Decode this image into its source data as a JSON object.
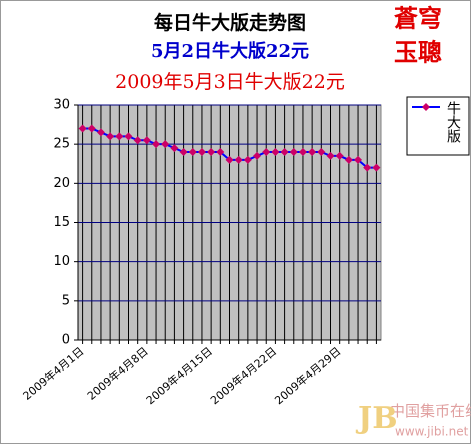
{
  "chart_data": {
    "type": "line",
    "title": "每日牛大版走势图",
    "subtitle": "5月2日牛大版22元",
    "annotation": "2009年5月3日牛大版22元",
    "logo": [
      "蒼穹",
      "玉聰"
    ],
    "watermark": [
      "中国集币在线",
      "www.jibi.net"
    ],
    "categories": [
      "2009年4月1日",
      null,
      null,
      null,
      null,
      null,
      null,
      "2009年4月8日",
      null,
      null,
      null,
      null,
      null,
      null,
      "2009年4月15日",
      null,
      null,
      null,
      null,
      null,
      null,
      "2009年4月22日",
      null,
      null,
      null,
      null,
      null,
      null,
      "2009年4月29日",
      null,
      null,
      null,
      null
    ],
    "series": [
      {
        "name": "牛大版",
        "color": "#0000ff",
        "marker_color": "#cc0066",
        "values": [
          27,
          27,
          26.5,
          26,
          26,
          26,
          25.5,
          25.5,
          25,
          25,
          24.5,
          24,
          24,
          24,
          24,
          24,
          23,
          23,
          23,
          23.5,
          24,
          24,
          24,
          24,
          24,
          24,
          24,
          23.5,
          23.5,
          23,
          23,
          22,
          22
        ]
      }
    ],
    "ylim": [
      0,
      30
    ],
    "yticks": [
      0,
      5,
      10,
      15,
      20,
      25,
      30
    ],
    "grid": true,
    "xgrid": true,
    "legend": "right"
  }
}
